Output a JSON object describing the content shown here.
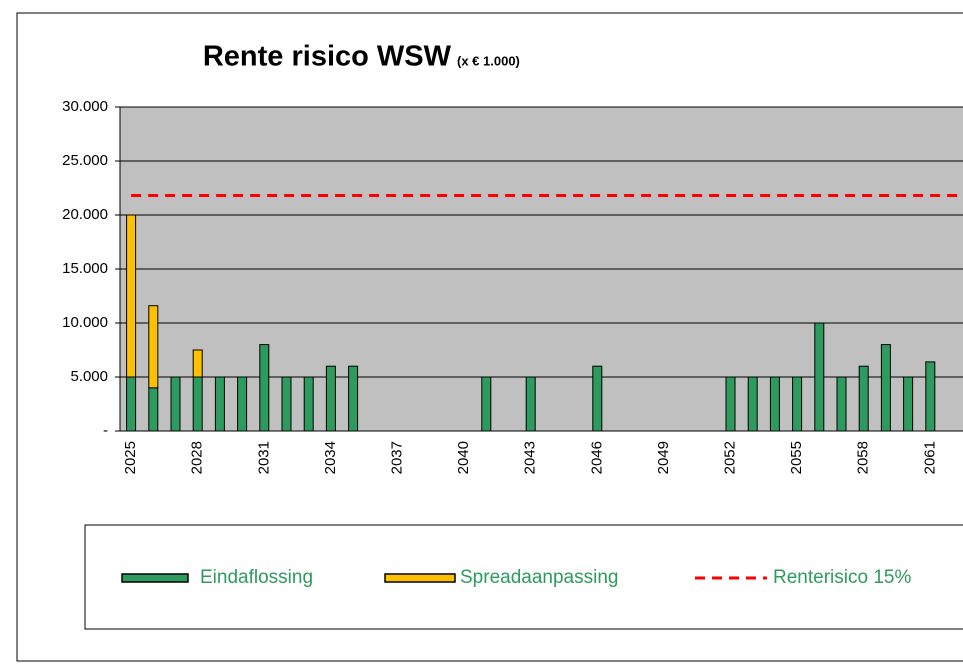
{
  "chart_data": {
    "type": "bar",
    "title": "Rente risico WSW",
    "subtitle": "(x € 1.000)",
    "categories": [
      "2025",
      null,
      null,
      "2028",
      null,
      null,
      "2031",
      null,
      null,
      "2034",
      null,
      null,
      "2037",
      null,
      null,
      "2040",
      null,
      null,
      "2043",
      null,
      null,
      "2046",
      null,
      null,
      "2049",
      null,
      null,
      "2052",
      null,
      null,
      "2055",
      null,
      null,
      "2058",
      null,
      null,
      "2061",
      null
    ],
    "series": [
      {
        "name": "Eindaflossing",
        "color": "#2e9b5e",
        "values": [
          5000,
          4000,
          5000,
          5000,
          5000,
          5000,
          8000,
          5000,
          5000,
          6000,
          6000,
          0,
          0,
          0,
          0,
          0,
          5000,
          0,
          5000,
          0,
          0,
          6000,
          0,
          0,
          0,
          0,
          0,
          5000,
          5000,
          5000,
          5000,
          10000,
          5000,
          6000,
          8000,
          5000,
          6400,
          0
        ]
      },
      {
        "name": "Spreadaanpassing",
        "color": "#ffc000",
        "values": [
          15000,
          7600,
          0,
          2500,
          0,
          0,
          0,
          0,
          0,
          0,
          0,
          0,
          0,
          0,
          0,
          0,
          0,
          0,
          0,
          0,
          0,
          0,
          0,
          0,
          0,
          0,
          0,
          0,
          0,
          0,
          0,
          0,
          0,
          0,
          0,
          0,
          0,
          0
        ]
      },
      {
        "name": "Renterisico 15%",
        "type": "line",
        "color": "#ff0000",
        "values": [
          21800,
          21800,
          21800,
          21800,
          21800,
          21800,
          21800,
          21800,
          21800,
          21800,
          21800,
          21800,
          21800,
          21800,
          21800,
          21800,
          21800,
          21800,
          21800,
          21800,
          21800,
          21800,
          21800,
          21800,
          21800,
          21800,
          21800,
          21800,
          21800,
          21800,
          21800,
          21800,
          21800,
          21800,
          21800,
          21800,
          21800,
          21800
        ]
      }
    ],
    "ylim": [
      0,
      30000
    ],
    "yticks": [
      {
        "value": 0,
        "label": "-"
      },
      {
        "value": 5000,
        "label": "5.000"
      },
      {
        "value": 10000,
        "label": "10.000"
      },
      {
        "value": 15000,
        "label": "15.000"
      },
      {
        "value": 20000,
        "label": "20.000"
      },
      {
        "value": 25000,
        "label": "25.000"
      },
      {
        "value": 30000,
        "label": "30.000"
      }
    ],
    "grid": true,
    "stacked": true,
    "legend": "bottom"
  }
}
